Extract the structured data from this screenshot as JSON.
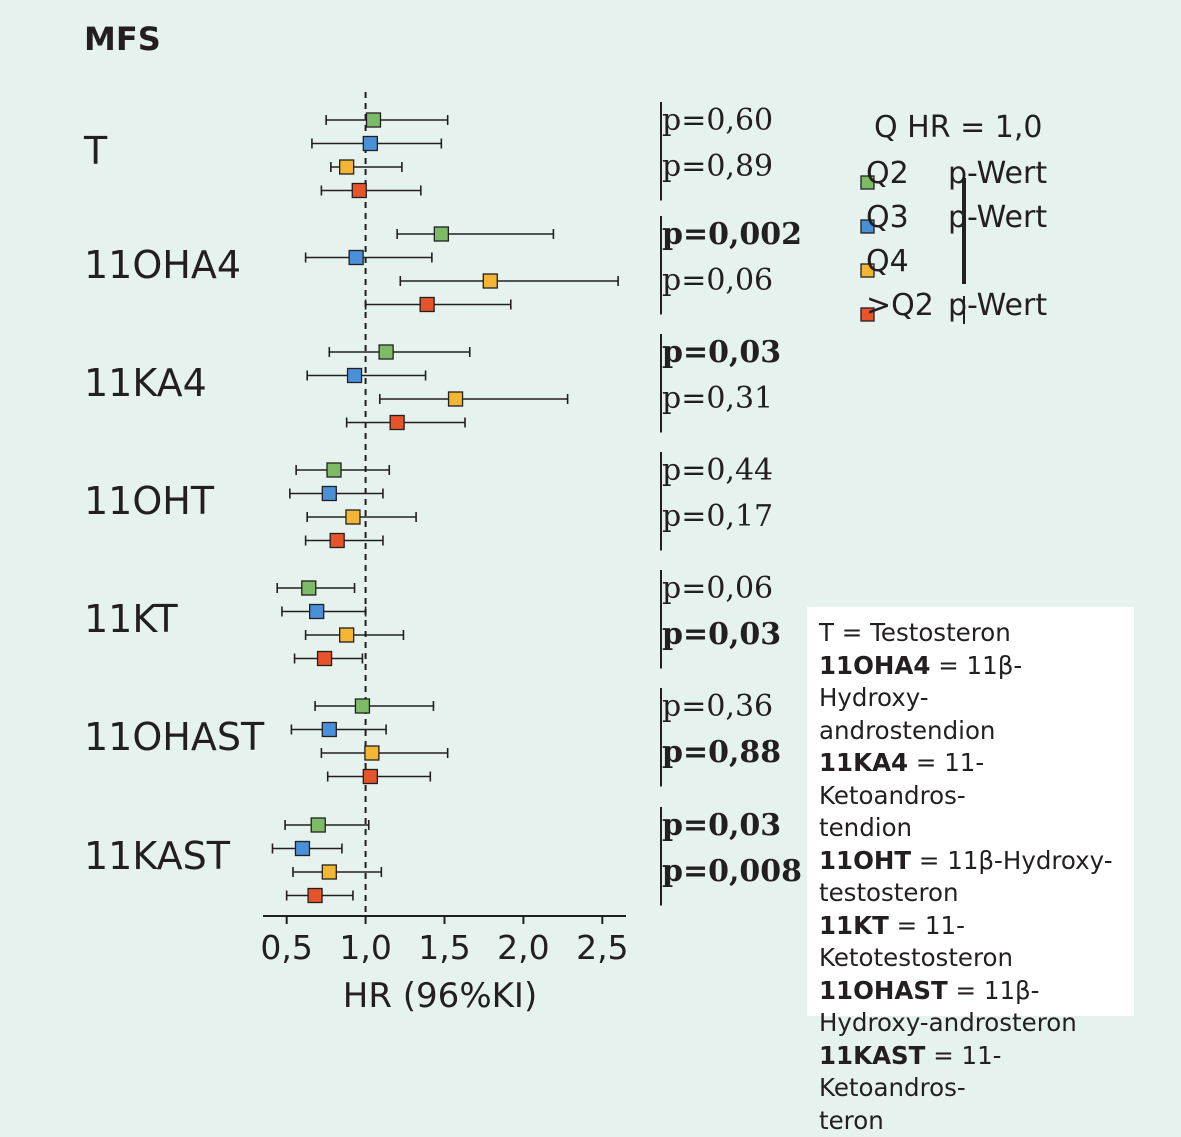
{
  "title": "MFS",
  "colors": {
    "Q2": "#7dbb66",
    "Q3": "#4a90d9",
    "Q4": "#f2b632",
    ">Q2": "#e8542a"
  },
  "chart_data": {
    "type": "forest",
    "xlabel": "HR (96%KI)",
    "xlim": [
      0.35,
      2.65
    ],
    "xticks": [
      "0,5",
      "1,0",
      "1,5",
      "2,0",
      "2,5"
    ],
    "xtick_values": [
      0.5,
      1.0,
      1.5,
      2.0,
      2.5
    ],
    "reference_line": 1.0,
    "series": [
      "Q2",
      "Q3",
      "Q4",
      ">Q2"
    ],
    "groups": [
      {
        "label": "T",
        "rows": [
          {
            "series": "Q2",
            "hr": 1.05,
            "lo": 0.75,
            "hi": 1.52
          },
          {
            "series": "Q3",
            "hr": 1.03,
            "lo": 0.66,
            "hi": 1.48
          },
          {
            "series": "Q4",
            "hr": 0.88,
            "lo": 0.78,
            "hi": 1.23
          },
          {
            "series": ">Q2",
            "hr": 0.96,
            "lo": 0.72,
            "hi": 1.35
          }
        ],
        "pvalues": [
          {
            "text": "p=0,60",
            "bold": false
          },
          {
            "text": "p=0,89",
            "bold": false
          }
        ]
      },
      {
        "label": "11OHA4",
        "rows": [
          {
            "series": "Q2",
            "hr": 1.48,
            "lo": 1.2,
            "hi": 2.19
          },
          {
            "series": "Q3",
            "hr": 0.94,
            "lo": 0.62,
            "hi": 1.42
          },
          {
            "series": "Q4",
            "hr": 1.79,
            "lo": 1.22,
            "hi": 2.6
          },
          {
            "series": ">Q2",
            "hr": 1.39,
            "lo": 1.0,
            "hi": 1.92
          }
        ],
        "pvalues": [
          {
            "text": "p=0,002",
            "bold": true
          },
          {
            "text": "p=0,06",
            "bold": false
          }
        ]
      },
      {
        "label": "11KA4",
        "rows": [
          {
            "series": "Q2",
            "hr": 1.13,
            "lo": 0.77,
            "hi": 1.66
          },
          {
            "series": "Q3",
            "hr": 0.93,
            "lo": 0.63,
            "hi": 1.38
          },
          {
            "series": "Q4",
            "hr": 1.57,
            "lo": 1.09,
            "hi": 2.28
          },
          {
            "series": ">Q2",
            "hr": 1.2,
            "lo": 0.88,
            "hi": 1.63
          }
        ],
        "pvalues": [
          {
            "text": "p=0,03",
            "bold": true
          },
          {
            "text": "p=0,31",
            "bold": false
          }
        ]
      },
      {
        "label": "11OHT",
        "rows": [
          {
            "series": "Q2",
            "hr": 0.8,
            "lo": 0.56,
            "hi": 1.15
          },
          {
            "series": "Q3",
            "hr": 0.77,
            "lo": 0.52,
            "hi": 1.11
          },
          {
            "series": "Q4",
            "hr": 0.92,
            "lo": 0.63,
            "hi": 1.32
          },
          {
            "series": ">Q2",
            "hr": 0.82,
            "lo": 0.62,
            "hi": 1.11
          }
        ],
        "pvalues": [
          {
            "text": "p=0,44",
            "bold": false
          },
          {
            "text": "p=0,17",
            "bold": false
          }
        ]
      },
      {
        "label": "11KT",
        "rows": [
          {
            "series": "Q2",
            "hr": 0.64,
            "lo": 0.44,
            "hi": 0.93
          },
          {
            "series": "Q3",
            "hr": 0.69,
            "lo": 0.47,
            "hi": 1.0
          },
          {
            "series": "Q4",
            "hr": 0.88,
            "lo": 0.62,
            "hi": 1.24
          },
          {
            "series": ">Q2",
            "hr": 0.74,
            "lo": 0.55,
            "hi": 0.98
          }
        ],
        "pvalues": [
          {
            "text": "p=0,06",
            "bold": false
          },
          {
            "text": "p=0,03",
            "bold": true
          }
        ]
      },
      {
        "label": "11OHAST",
        "rows": [
          {
            "series": "Q2",
            "hr": 0.98,
            "lo": 0.68,
            "hi": 1.43
          },
          {
            "series": "Q3",
            "hr": 0.77,
            "lo": 0.53,
            "hi": 1.13
          },
          {
            "series": "Q4",
            "hr": 1.04,
            "lo": 0.72,
            "hi": 1.52
          },
          {
            "series": ">Q2",
            "hr": 1.03,
            "lo": 0.76,
            "hi": 1.41
          }
        ],
        "pvalues": [
          {
            "text": "p=0,36",
            "bold": false
          },
          {
            "text": "p=0,88",
            "bold": true
          }
        ]
      },
      {
        "label": "11KAST",
        "rows": [
          {
            "series": "Q2",
            "hr": 0.7,
            "lo": 0.49,
            "hi": 1.02
          },
          {
            "series": "Q3",
            "hr": 0.6,
            "lo": 0.41,
            "hi": 0.85
          },
          {
            "series": "Q4",
            "hr": 0.77,
            "lo": 0.54,
            "hi": 1.1
          },
          {
            "series": ">Q2",
            "hr": 0.68,
            "lo": 0.5,
            "hi": 0.92
          }
        ],
        "pvalues": [
          {
            "text": "p=0,03",
            "bold": true
          },
          {
            "text": "p=0,008",
            "bold": true
          }
        ]
      }
    ]
  },
  "legend": {
    "title": "Q HR = 1,0",
    "items": [
      {
        "series": "Q2",
        "label": "Q2",
        "p": "p-Wert"
      },
      {
        "series": "Q3",
        "label": "Q3",
        "p": "p-Wert"
      },
      {
        "series": "Q4",
        "label": "Q4",
        "p": ""
      },
      {
        "series": ">Q2",
        "label": ">Q2",
        "p": "p-Wert"
      }
    ]
  },
  "abbreviations": [
    {
      "key": "",
      "text": "T = Testosteron"
    },
    {
      "key": "11OHA4",
      "text": " = 11β-Hydroxy-"
    },
    {
      "key": "",
      "text": "androstendion"
    },
    {
      "key": "11KA4",
      "text": " = 11-Ketoandros-"
    },
    {
      "key": "",
      "text": "tendion"
    },
    {
      "key": "11OHT",
      "text": " = 11β-Hydroxy-"
    },
    {
      "key": "",
      "text": "testosteron"
    },
    {
      "key": "11KT",
      "text": " = 11-Ketotestosteron"
    },
    {
      "key": "11OHAST",
      "text": " = 11β-"
    },
    {
      "key": "",
      "text": "Hydroxy-androsteron"
    },
    {
      "key": "11KAST",
      "text": " = 11-Ketoandros-"
    },
    {
      "key": "",
      "text": "teron"
    }
  ]
}
